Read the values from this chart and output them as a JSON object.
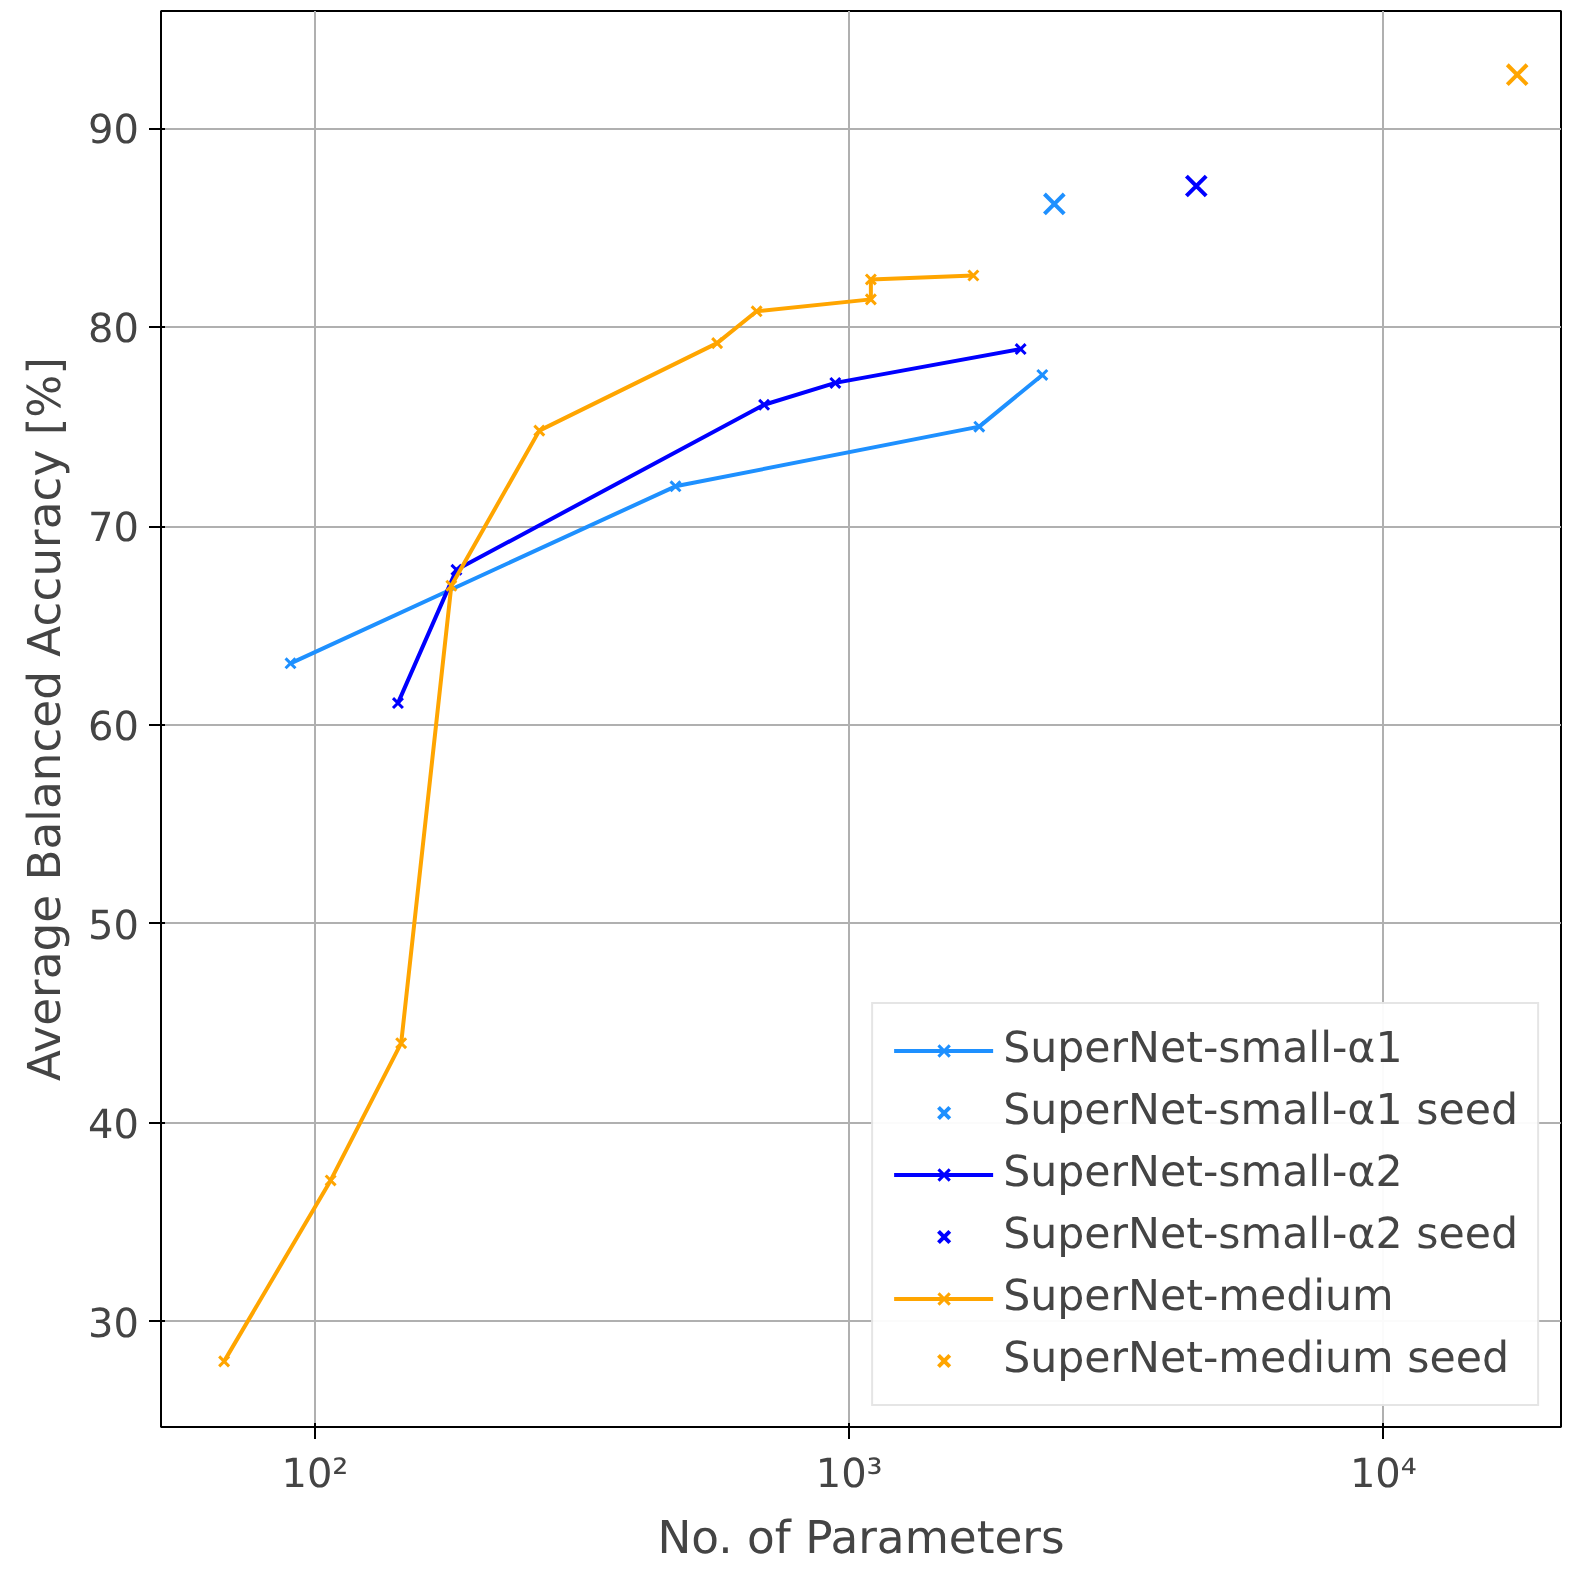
{
  "chart_data": {
    "type": "line",
    "xlabel": "No. of Parameters",
    "ylabel": "Average Balanced Accuracy [%]",
    "log": "x",
    "xlim": [
      51.5,
      21500
    ],
    "ylim": [
      24.7,
      95.9
    ],
    "xticks": [
      {
        "value": 100,
        "label": "10²"
      },
      {
        "value": 1000,
        "label": "10³"
      },
      {
        "value": 10000,
        "label": "10⁴"
      }
    ],
    "yticks": [
      30,
      40,
      50,
      60,
      70,
      80,
      90
    ],
    "grid": true,
    "legend": "bottom right",
    "marker": "cross",
    "series": [
      {
        "name": "SuperNet-small-α1",
        "color": "#1e90ff",
        "x": [
          90,
          473,
          1752,
          2299
        ],
        "values": [
          63.1,
          72.0,
          75.0,
          77.6
        ]
      },
      {
        "name": "SuperNet-small-α1 seed",
        "color": "#1e90ff",
        "type": "scatter",
        "x": [
          2421
        ],
        "values": [
          86.2
        ]
      },
      {
        "name": "SuperNet-small-α2",
        "color": "#0000ff",
        "x": [
          143,
          184,
          693,
          942,
          2094
        ],
        "values": [
          61.1,
          67.8,
          76.1,
          77.2,
          78.9
        ]
      },
      {
        "name": "SuperNet-small-α2 seed",
        "color": "#0000ff",
        "type": "scatter",
        "x": [
          4464
        ],
        "values": [
          87.1
        ]
      },
      {
        "name": "SuperNet-medium",
        "color": "#ffa500",
        "x": [
          67.6,
          107,
          145,
          180,
          263,
          566,
          671,
          1098,
          1098,
          1708
        ],
        "values": [
          28.0,
          37.1,
          44.0,
          67.0,
          74.8,
          79.2,
          80.8,
          81.4,
          82.4,
          82.6
        ]
      },
      {
        "name": "SuperNet-medium seed",
        "color": "#ffa500",
        "type": "scatter",
        "x": [
          17800
        ],
        "values": [
          92.7
        ]
      }
    ]
  }
}
